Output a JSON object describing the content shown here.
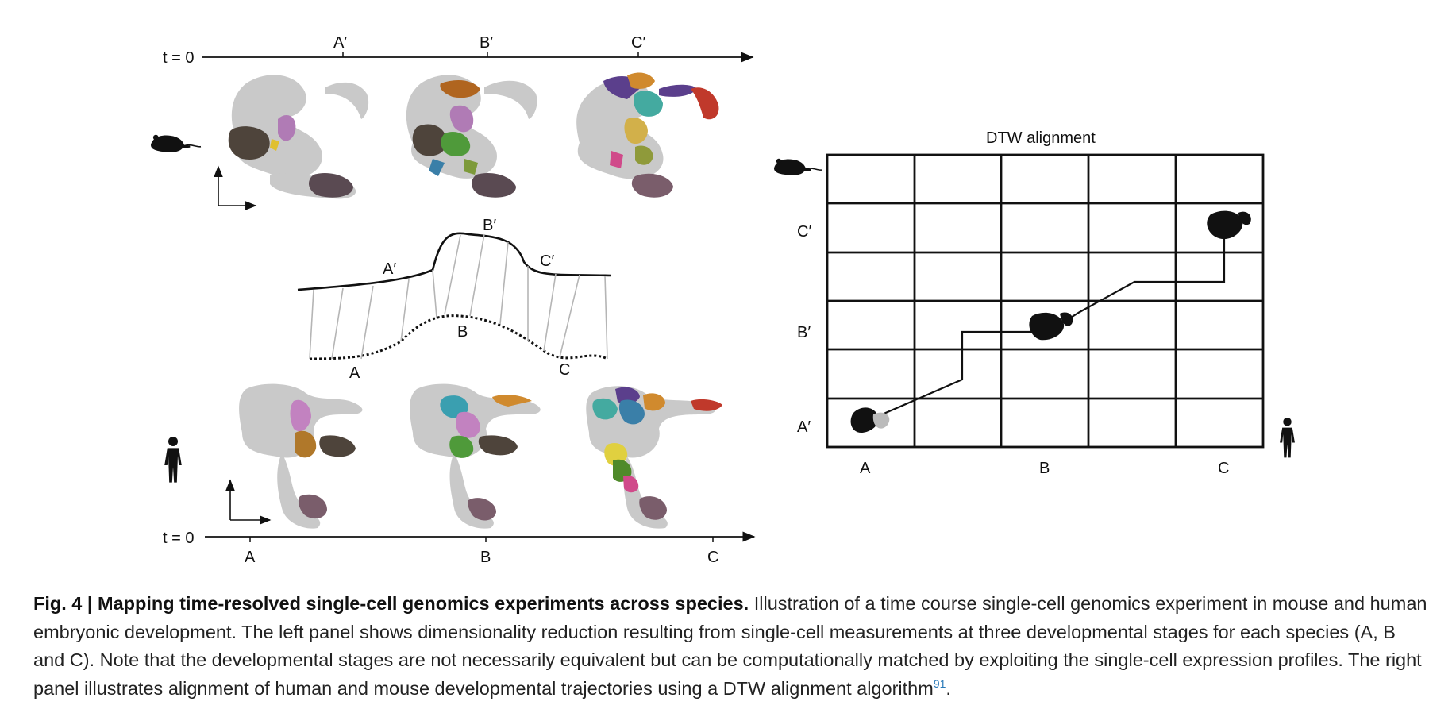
{
  "figure": {
    "left_panel": {
      "top_axis": {
        "origin_label": "t = 0",
        "stage_labels": [
          "A′",
          "B′",
          "C′"
        ]
      },
      "bottom_axis": {
        "origin_label": "t = 0",
        "stage_labels": [
          "A",
          "B",
          "C"
        ]
      },
      "curve_labels": {
        "top_curve": [
          "A′",
          "B′",
          "C′"
        ],
        "bottom_curve": [
          "A",
          "B",
          "C"
        ]
      },
      "top_species_icon": "mouse-icon",
      "bottom_species_icon": "human-icon"
    },
    "right_panel": {
      "title": "DTW alignment",
      "row_labels": [
        "C′",
        "B′",
        "A′"
      ],
      "col_labels": [
        "A",
        "B",
        "C"
      ],
      "grid_rows": 6,
      "grid_cols": 5,
      "top_left_icon": "mouse-icon",
      "bottom_right_icon": "human-icon"
    },
    "colors": {
      "umap_gray": "#c9c9c9",
      "cluster_colors": [
        "#5a4a3f",
        "#b07bb5",
        "#8b6a4d",
        "#4f9a3a",
        "#d2691e",
        "#3a7fa8",
        "#c0392b",
        "#5b3f8c",
        "#7a5d6b",
        "#e0c030",
        "#d04a8a",
        "#44aaa0"
      ]
    }
  },
  "caption": {
    "label": "Fig. 4 | Mapping time-resolved single-cell genomics experiments across species.",
    "text": " Illustration of a time course single-cell genomics experiment in mouse and human embryonic development. The left panel shows dimensionality reduction resulting from single-cell measurements at three developmental stages for each species (A, B and C). Note that the developmental stages are not necessarily equivalent but can be computationally matched by exploiting the single-cell expression profiles. The right panel illustrates alignment of human and mouse developmental trajectories using a DTW alignment algorithm",
    "citation": "91",
    "end": "."
  }
}
